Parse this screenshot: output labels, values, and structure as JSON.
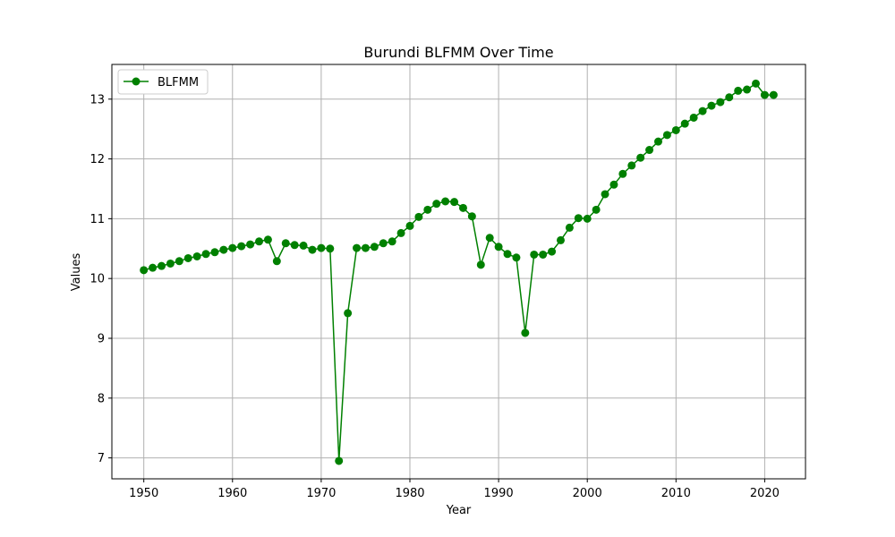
{
  "chart_data": {
    "type": "line",
    "title": "Burundi BLFMM Over Time",
    "xlabel": "Year",
    "ylabel": "Values",
    "xlim": [
      1946.4,
      2024.6
    ],
    "ylim": [
      6.65,
      13.58
    ],
    "x_ticks": [
      1950,
      1960,
      1970,
      1980,
      1990,
      2000,
      2010,
      2020
    ],
    "y_ticks": [
      7,
      8,
      9,
      10,
      11,
      12,
      13
    ],
    "grid": true,
    "legend_position": "top-left",
    "series": [
      {
        "name": "BLFMM",
        "color": "#008000",
        "marker": "circle",
        "x": [
          1950,
          1951,
          1952,
          1953,
          1954,
          1955,
          1956,
          1957,
          1958,
          1959,
          1960,
          1961,
          1962,
          1963,
          1964,
          1965,
          1966,
          1967,
          1968,
          1969,
          1970,
          1971,
          1972,
          1973,
          1974,
          1975,
          1976,
          1977,
          1978,
          1979,
          1980,
          1981,
          1982,
          1983,
          1984,
          1985,
          1986,
          1987,
          1988,
          1989,
          1990,
          1991,
          1992,
          1993,
          1994,
          1995,
          1996,
          1997,
          1998,
          1999,
          2000,
          2001,
          2002,
          2003,
          2004,
          2005,
          2006,
          2007,
          2008,
          2009,
          2010,
          2011,
          2012,
          2013,
          2014,
          2015,
          2016,
          2017,
          2018,
          2019,
          2020,
          2021
        ],
        "values": [
          10.14,
          10.18,
          10.21,
          10.25,
          10.29,
          10.34,
          10.37,
          10.41,
          10.44,
          10.48,
          10.51,
          10.54,
          10.57,
          10.62,
          10.65,
          10.29,
          10.59,
          10.56,
          10.55,
          10.48,
          10.51,
          10.5,
          6.95,
          9.42,
          10.51,
          10.51,
          10.53,
          10.59,
          10.62,
          10.76,
          10.88,
          11.03,
          11.15,
          11.25,
          11.29,
          11.28,
          11.18,
          11.04,
          10.23,
          10.68,
          10.53,
          10.41,
          10.35,
          9.09,
          10.4,
          10.4,
          10.45,
          10.64,
          10.85,
          11.01,
          11.0,
          11.15,
          11.41,
          11.57,
          11.75,
          11.89,
          12.02,
          12.15,
          12.29,
          12.4,
          12.48,
          12.59,
          12.69,
          12.8,
          12.89,
          12.95,
          13.03,
          13.14,
          13.16,
          13.26,
          13.07,
          13.07
        ]
      }
    ]
  }
}
